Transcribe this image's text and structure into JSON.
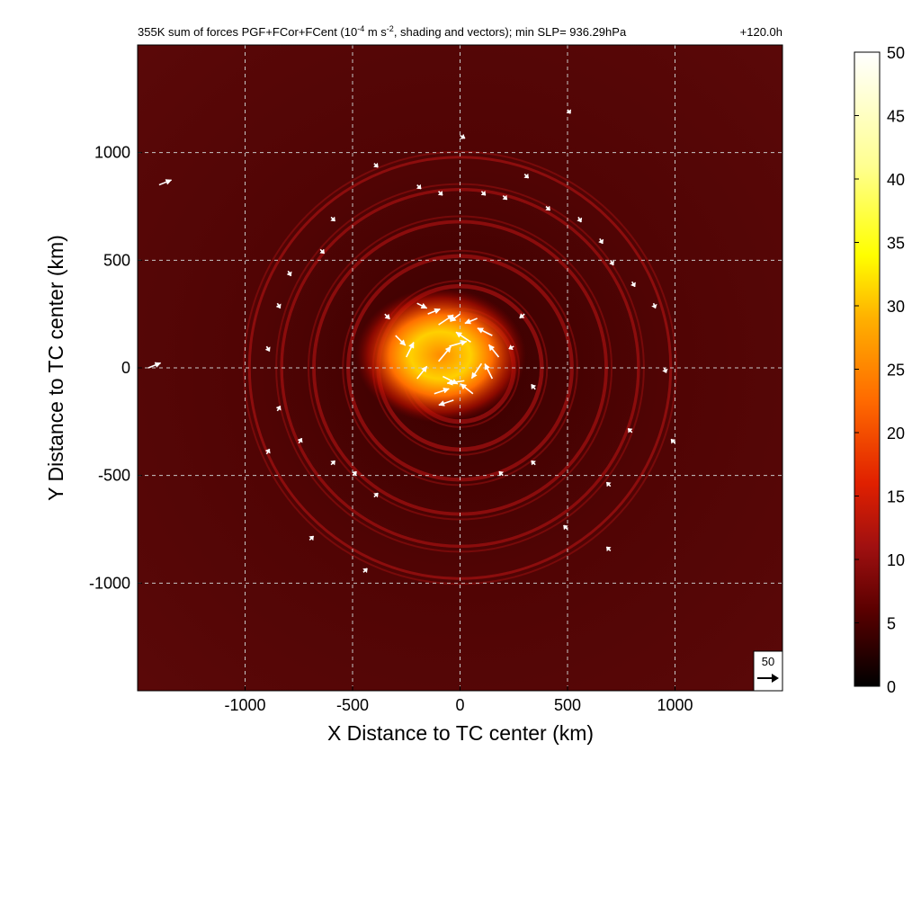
{
  "title": {
    "prefix": "355K sum of forces PGF+FCor+FCent (10",
    "exp1": "-4",
    "mid": " m s",
    "exp2": "-2",
    "suffix": ", shading and vectors); min SLP= 936.29hPa",
    "time": "+120.0h"
  },
  "chart_data": {
    "type": "heatmap",
    "field": "355K sum of forces PGF+FCor+FCent",
    "units": "10^-4 m s^-2",
    "min_slp_hPa": 936.29,
    "forecast_hour": "+120.0h",
    "xlabel": "X Distance to TC center (km)",
    "ylabel": "Y Distance to TC center (km)",
    "xlim": [
      -1500,
      1500
    ],
    "ylim": [
      -1500,
      1500
    ],
    "xticks": [
      -1000,
      -500,
      0,
      500,
      1000
    ],
    "yticks": [
      -1000,
      -500,
      0,
      500,
      1000
    ],
    "grid": true,
    "colorbar": {
      "ticks": [
        0,
        5,
        10,
        15,
        20,
        25,
        30,
        35,
        40,
        45,
        50
      ],
      "range": [
        0,
        50
      ],
      "colors": [
        "#000000",
        "#5a0000",
        "#a01010",
        "#e02000",
        "#ff6a00",
        "#ffb000",
        "#ffff00",
        "#ffff90",
        "#ffffff"
      ]
    },
    "rings_km": [
      250,
      380,
      520,
      680,
      830,
      980
    ],
    "core_max_value": 40,
    "reference_vector": {
      "label": "50",
      "magnitude": 50
    },
    "vectors": [
      {
        "x": -200,
        "y": 300,
        "u": 20,
        "v": -10
      },
      {
        "x": -150,
        "y": 250,
        "u": 25,
        "v": 10
      },
      {
        "x": -100,
        "y": 200,
        "u": 30,
        "v": 20
      },
      {
        "x": 0,
        "y": 250,
        "u": -20,
        "v": -15
      },
      {
        "x": 80,
        "y": 230,
        "u": -25,
        "v": -10
      },
      {
        "x": 150,
        "y": 150,
        "u": -30,
        "v": 15
      },
      {
        "x": 180,
        "y": 50,
        "u": -20,
        "v": 25
      },
      {
        "x": 150,
        "y": -50,
        "u": -15,
        "v": 30
      },
      {
        "x": 60,
        "y": -120,
        "u": -25,
        "v": 20
      },
      {
        "x": -30,
        "y": -150,
        "u": -30,
        "v": -10
      },
      {
        "x": -120,
        "y": -120,
        "u": 30,
        "v": 10
      },
      {
        "x": -200,
        "y": -50,
        "u": 20,
        "v": 25
      },
      {
        "x": -250,
        "y": 50,
        "u": 15,
        "v": 30
      },
      {
        "x": -300,
        "y": 150,
        "u": 20,
        "v": -20
      },
      {
        "x": -50,
        "y": 100,
        "u": 35,
        "v": 10
      },
      {
        "x": 50,
        "y": 120,
        "u": -30,
        "v": 20
      },
      {
        "x": 100,
        "y": 20,
        "u": -20,
        "v": -30
      },
      {
        "x": 20,
        "y": -60,
        "u": -35,
        "v": -5
      },
      {
        "x": -80,
        "y": -40,
        "u": 30,
        "v": -15
      },
      {
        "x": -100,
        "y": 30,
        "u": 25,
        "v": 30
      },
      {
        "x": -350,
        "y": 250,
        "u": 10,
        "v": -10
      },
      {
        "x": 300,
        "y": 250,
        "u": -10,
        "v": -8
      },
      {
        "x": 350,
        "y": -100,
        "u": -8,
        "v": 10
      },
      {
        "x": 250,
        "y": 100,
        "u": -10,
        "v": -5
      },
      {
        "x": 0,
        "y": 1080,
        "u": 10,
        "v": -6
      },
      {
        "x": -200,
        "y": 850,
        "u": 8,
        "v": -8
      },
      {
        "x": -100,
        "y": 820,
        "u": 8,
        "v": -8
      },
      {
        "x": 100,
        "y": 820,
        "u": 8,
        "v": -8
      },
      {
        "x": 200,
        "y": 800,
        "u": 8,
        "v": -8
      },
      {
        "x": 400,
        "y": 750,
        "u": 8,
        "v": -8
      },
      {
        "x": 550,
        "y": 700,
        "u": 6,
        "v": -10
      },
      {
        "x": 650,
        "y": 600,
        "u": 6,
        "v": -10
      },
      {
        "x": 700,
        "y": 500,
        "u": 6,
        "v": -10
      },
      {
        "x": 800,
        "y": 400,
        "u": 6,
        "v": -10
      },
      {
        "x": 900,
        "y": 300,
        "u": 4,
        "v": -10
      },
      {
        "x": 950,
        "y": 0,
        "u": 4,
        "v": -10
      },
      {
        "x": -600,
        "y": 700,
        "u": 8,
        "v": -8
      },
      {
        "x": -650,
        "y": 550,
        "u": 8,
        "v": -8
      },
      {
        "x": -800,
        "y": 450,
        "u": 6,
        "v": -10
      },
      {
        "x": -850,
        "y": 300,
        "u": 6,
        "v": -10
      },
      {
        "x": -900,
        "y": 100,
        "u": 6,
        "v": -10
      },
      {
        "x": -850,
        "y": -200,
        "u": 6,
        "v": 10
      },
      {
        "x": -900,
        "y": -400,
        "u": 6,
        "v": 10
      },
      {
        "x": -750,
        "y": -350,
        "u": 6,
        "v": 10
      },
      {
        "x": -600,
        "y": -450,
        "u": 8,
        "v": 8
      },
      {
        "x": -500,
        "y": -500,
        "u": 8,
        "v": 8
      },
      {
        "x": -400,
        "y": -600,
        "u": 8,
        "v": 8
      },
      {
        "x": -700,
        "y": -800,
        "u": 8,
        "v": 8
      },
      {
        "x": -450,
        "y": -950,
        "u": 8,
        "v": 8
      },
      {
        "x": 200,
        "y": -500,
        "u": -8,
        "v": 8
      },
      {
        "x": 350,
        "y": -450,
        "u": -8,
        "v": 8
      },
      {
        "x": 700,
        "y": -550,
        "u": -8,
        "v": 8
      },
      {
        "x": 800,
        "y": -300,
        "u": -8,
        "v": 8
      },
      {
        "x": 1000,
        "y": -350,
        "u": -8,
        "v": 8
      },
      {
        "x": 500,
        "y": -750,
        "u": -8,
        "v": 8
      },
      {
        "x": 700,
        "y": -850,
        "u": -8,
        "v": 8
      },
      {
        "x": 300,
        "y": 900,
        "u": 8,
        "v": -8
      },
      {
        "x": -400,
        "y": 950,
        "u": 8,
        "v": -8
      },
      {
        "x": 500,
        "y": 1200,
        "u": 6,
        "v": -8
      },
      {
        "x": -1400,
        "y": 850,
        "u": 25,
        "v": 10
      },
      {
        "x": -1450,
        "y": 0,
        "u": 25,
        "v": 10
      }
    ]
  }
}
